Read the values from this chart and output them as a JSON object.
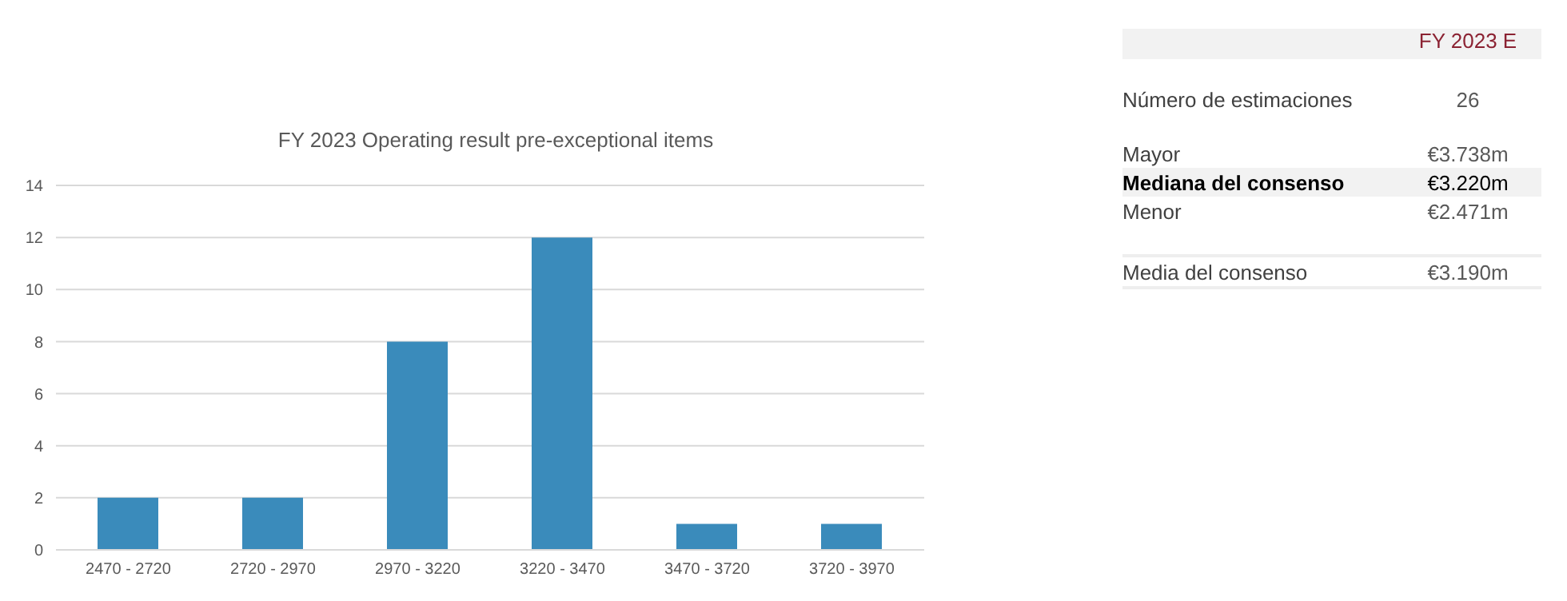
{
  "chart_data": [
    {
      "type": "bar",
      "title": "FY 2023 Operating result pre-exceptional items",
      "categories": [
        "2470 - 2720",
        "2720 - 2970",
        "2970 - 3220",
        "3220 - 3470",
        "3470 - 3720",
        "3720 - 3970"
      ],
      "values": [
        2,
        2,
        8,
        12,
        1,
        1
      ],
      "color": "#3a8bbb",
      "ylim": [
        0,
        14
      ],
      "yticks": [
        0,
        2,
        4,
        6,
        8,
        10,
        12,
        14
      ],
      "grid": "y",
      "legend": false
    },
    {
      "type": "other",
      "title": "FY 2023 E",
      "categories": [
        "Número de estimaciones",
        "Mayor",
        "Mediana del consenso",
        "Menor",
        "Media del consenso"
      ],
      "annotations": [
        "26",
        "€3.738m",
        "€3.220m",
        "€2.471m",
        "€3.190m"
      ]
    }
  ]
}
